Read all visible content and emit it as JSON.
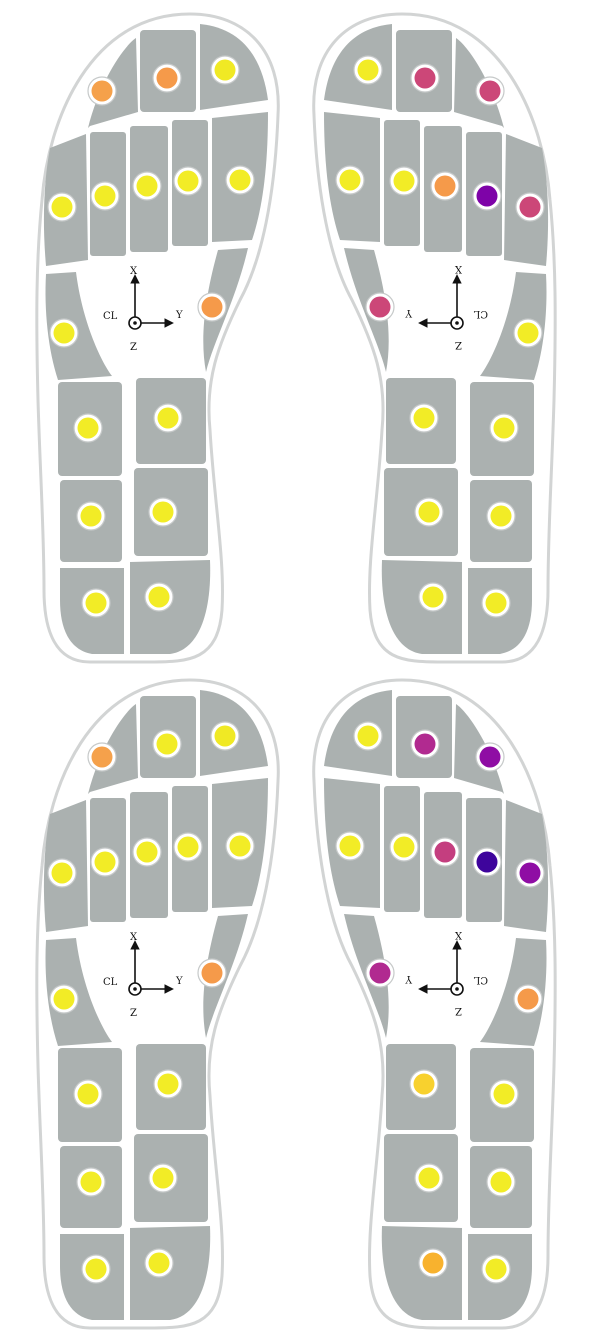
{
  "figure": {
    "panels": [
      {
        "id": "top-left",
        "foot": "left",
        "axes": {
          "x": "X",
          "y": "Y",
          "z": "Z",
          "origin": "CL"
        },
        "sensor_colors": [
          "#f5a14b",
          "#f59a4a",
          "#f0e924",
          "#f2ec26",
          "#f2ec26",
          "#f2ec26",
          "#f2ec26",
          "#f2ec26",
          "#f2ec26",
          "#f59a4a",
          "#f2ec26",
          "#f2ec26",
          "#f2ec26",
          "#f2ec26",
          "#f2ec26",
          "#f2ec26"
        ]
      },
      {
        "id": "top-right",
        "foot": "right",
        "axes": {
          "x": "X",
          "y": "Y",
          "z": "Z",
          "origin": "CL"
        },
        "sensor_colors": [
          "#f2ec26",
          "#cc4778",
          "#cc4778",
          "#f2ec26",
          "#f2ec26",
          "#f59a4a",
          "#7e03a8",
          "#cc4778",
          "#cc4778",
          "#f2ec26",
          "#f2ec26",
          "#f2ec26",
          "#f2ec26",
          "#f2ec26",
          "#f2ec26",
          "#f2ec26"
        ]
      },
      {
        "id": "bottom-left",
        "foot": "left",
        "axes": {
          "x": "X",
          "y": "Y",
          "z": "Z",
          "origin": "CL"
        },
        "sensor_colors": [
          "#f5a14b",
          "#f2ec26",
          "#f0e924",
          "#f2ec26",
          "#f2ec26",
          "#f2ec26",
          "#f2ec26",
          "#f2ec26",
          "#f2ec26",
          "#f59a4a",
          "#f2ec26",
          "#f2ec26",
          "#f2ec26",
          "#f2ec26",
          "#f2ec26",
          "#f2ec26"
        ]
      },
      {
        "id": "bottom-right",
        "foot": "right",
        "axes": {
          "x": "X",
          "y": "Y",
          "z": "Z",
          "origin": "CL"
        },
        "sensor_colors": [
          "#f2ec26",
          "#b12a90",
          "#8f0da4",
          "#f2ec26",
          "#f2ec26",
          "#c43e7f",
          "#3e049c",
          "#8f0da4",
          "#b12a90",
          "#f59a4a",
          "#f8d12e",
          "#f2ec26",
          "#f2ec26",
          "#f2ec26",
          "#f8b22e",
          "#f2ec26"
        ]
      }
    ]
  }
}
